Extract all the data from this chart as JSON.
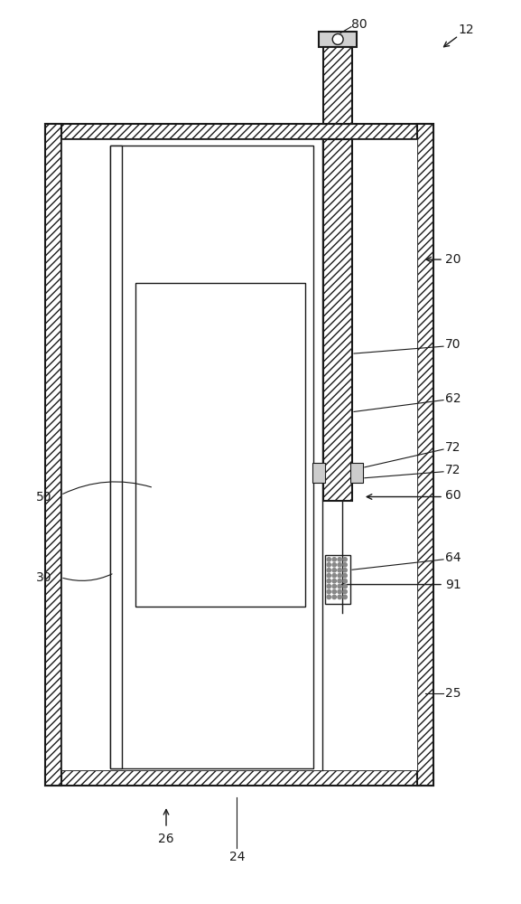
{
  "bg_color": "#ffffff",
  "line_color": "#1a1a1a",
  "fig_width": 5.77,
  "fig_height": 10.0,
  "dpi": 100
}
